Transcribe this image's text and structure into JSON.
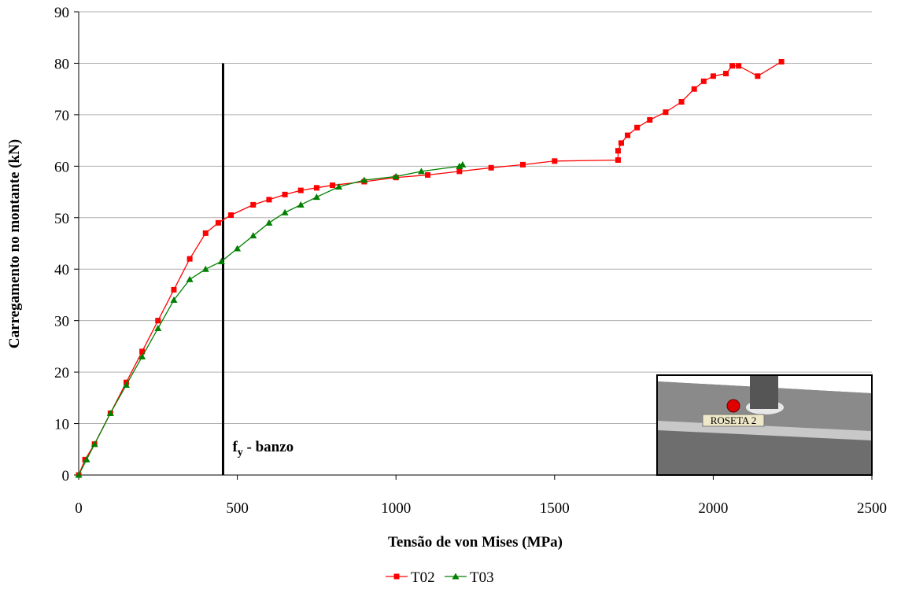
{
  "chart_data": {
    "type": "line",
    "x_label": "Tensão de von Mises (MPa)",
    "y_label": "Carregamento no montante (kN)",
    "xlim": [
      0,
      2500
    ],
    "xticks": [
      0,
      500,
      1000,
      1500,
      2000,
      2500
    ],
    "ylim": [
      0,
      90
    ],
    "yticks": [
      0,
      10,
      20,
      30,
      40,
      50,
      60,
      70,
      80,
      90
    ],
    "grid": true,
    "legend": "bottom",
    "series": [
      {
        "name": "T02",
        "color": "#ff0000",
        "marker": "square",
        "x": [
          0,
          20,
          50,
          100,
          150,
          200,
          250,
          300,
          350,
          400,
          440,
          480,
          550,
          600,
          650,
          700,
          750,
          800,
          900,
          1000,
          1100,
          1200,
          1300,
          1400,
          1500,
          1700,
          1700,
          1710,
          1730,
          1760,
          1800,
          1850,
          1900,
          1940,
          1970,
          2000,
          2040,
          2060,
          2080,
          2140,
          2215
        ],
        "values": [
          0,
          3,
          6,
          12,
          18,
          24,
          30,
          36,
          42,
          47,
          49,
          50.5,
          52.5,
          53.5,
          54.5,
          55.3,
          55.8,
          56.3,
          57,
          57.8,
          58.3,
          59,
          59.7,
          60.3,
          61,
          61.2,
          63,
          64.5,
          66,
          67.5,
          69,
          70.5,
          72.5,
          75,
          76.5,
          77.5,
          78,
          79.5,
          79.5,
          77.5,
          80.3
        ]
      },
      {
        "name": "T03",
        "color": "#008000",
        "marker": "triangle",
        "x": [
          0,
          25,
          50,
          100,
          150,
          200,
          250,
          300,
          350,
          400,
          450,
          500,
          550,
          600,
          650,
          700,
          750,
          820,
          900,
          1000,
          1080,
          1200,
          1210
        ],
        "values": [
          0,
          3,
          6,
          12,
          17.5,
          23,
          28.5,
          34,
          38,
          40,
          41.5,
          44,
          46.5,
          49,
          51,
          52.5,
          54,
          56,
          57.3,
          58,
          59,
          60,
          60.3
        ]
      }
    ],
    "ref_line": {
      "x": 455,
      "y": [
        0,
        80
      ],
      "color": "#000000",
      "label_main": "f",
      "label_sub": "y",
      "label_rest": " - banzo"
    },
    "inset_label": "ROSETA 2"
  }
}
